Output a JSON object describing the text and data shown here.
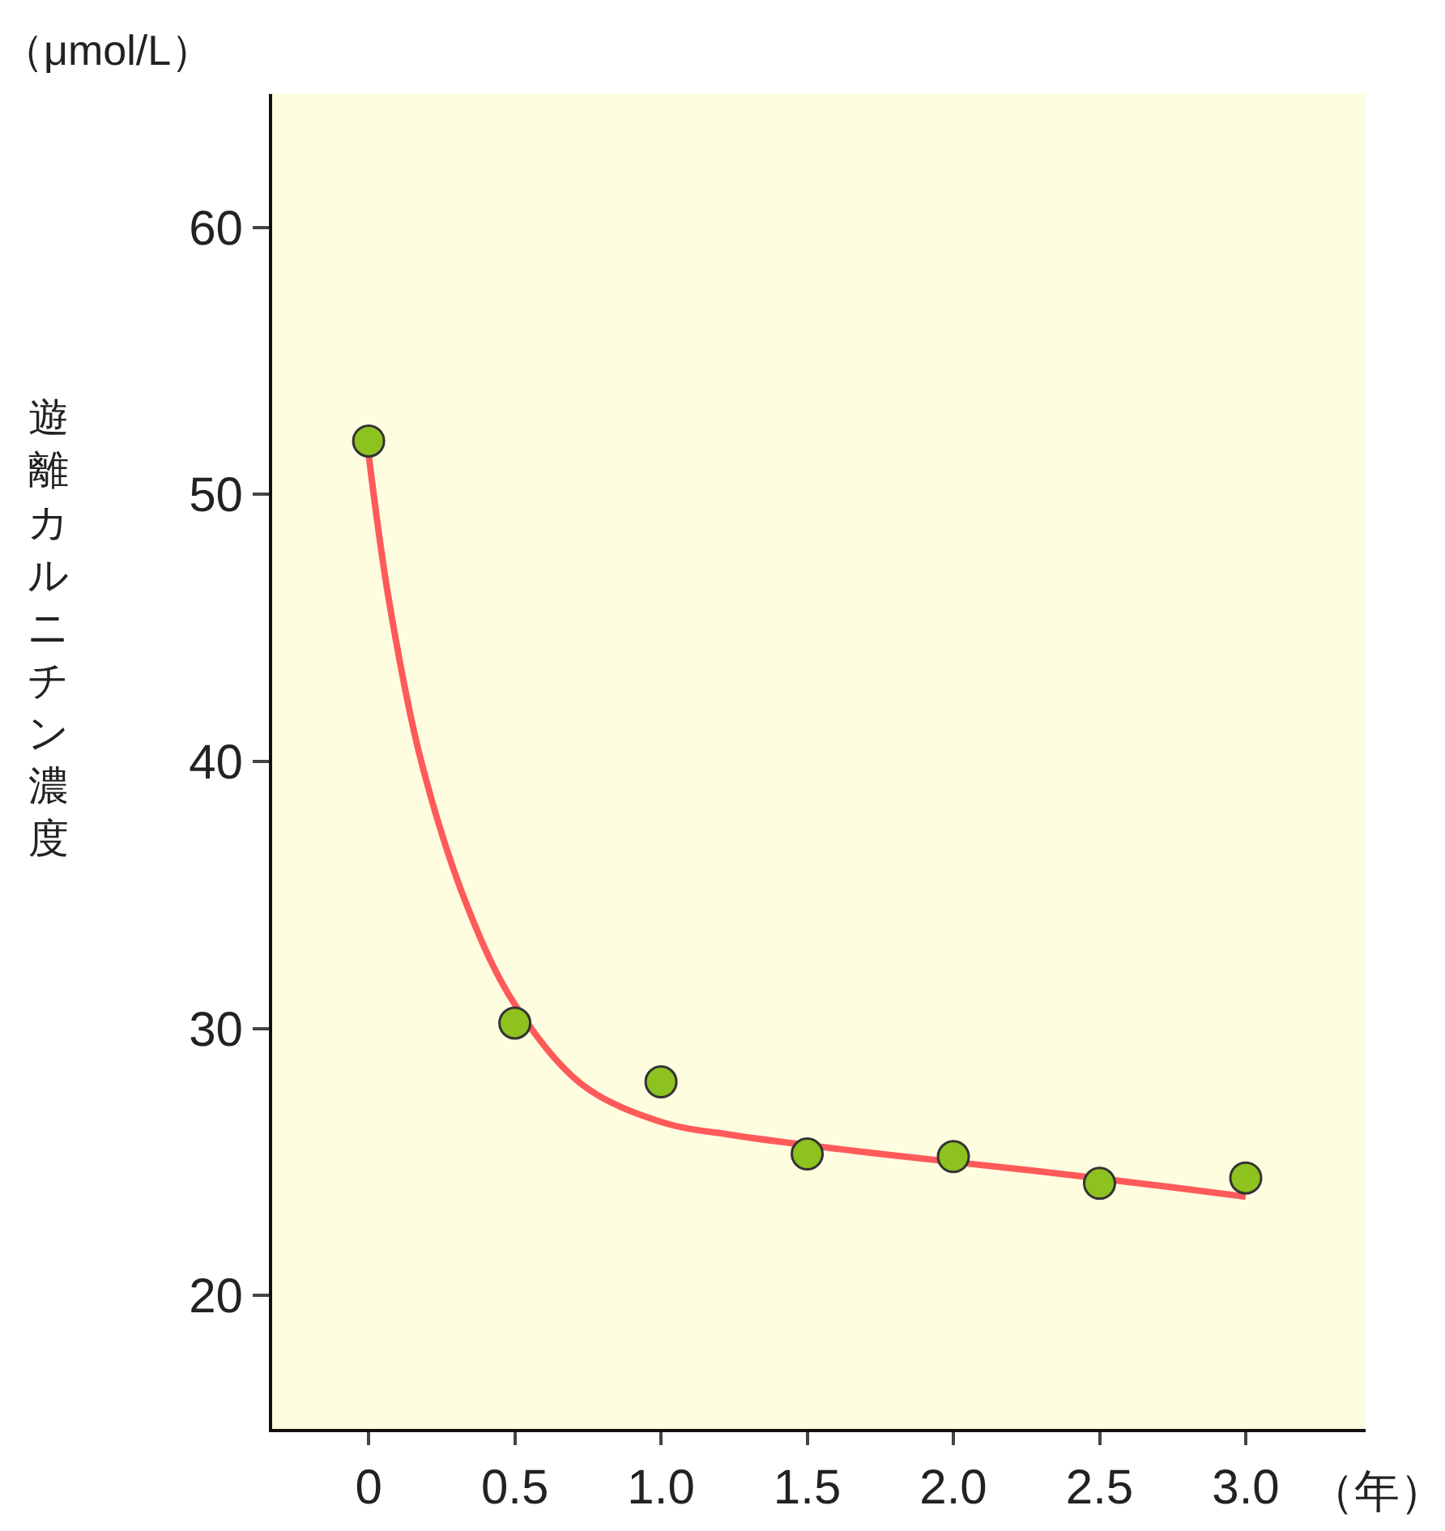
{
  "chart_data": {
    "type": "scatter",
    "ylabel": "遊離カルニチン濃度",
    "xlabel": "（年）",
    "annotations": [
      "（μmol/L）"
    ],
    "xlim": [
      -0.33,
      3.41
    ],
    "xticks": [
      0,
      0.5,
      {
        "value": 1,
        "label": "1.0"
      },
      1.5,
      {
        "value": 2,
        "label": "2.0"
      },
      2.5,
      {
        "value": 3,
        "label": "3.0"
      }
    ],
    "ylim": [
      15,
      65
    ],
    "yticks": [
      20,
      30,
      40,
      50,
      60
    ],
    "grid": false,
    "marker": "circle",
    "line_style": "solid",
    "series": [
      {
        "type": "line",
        "marker": "none",
        "color": "#ff5a5a",
        "x": [
          0,
          0.07,
          0.18,
          0.34,
          0.5,
          0.73,
          1.0,
          1.25,
          1.75,
          2.25,
          2.75,
          3.0
        ],
        "values": [
          51.5,
          46,
          40,
          34.5,
          30.9,
          27.9,
          26.5,
          26.0,
          25.3,
          24.7,
          24.05,
          23.7
        ]
      },
      {
        "color": "#8dc21f",
        "x": [
          0,
          0.5,
          1.0,
          1.5,
          2.0,
          2.5,
          3.0
        ],
        "values": [
          52,
          30.2,
          28.0,
          25.3,
          25.2,
          24.2,
          24.4
        ]
      }
    ]
  }
}
